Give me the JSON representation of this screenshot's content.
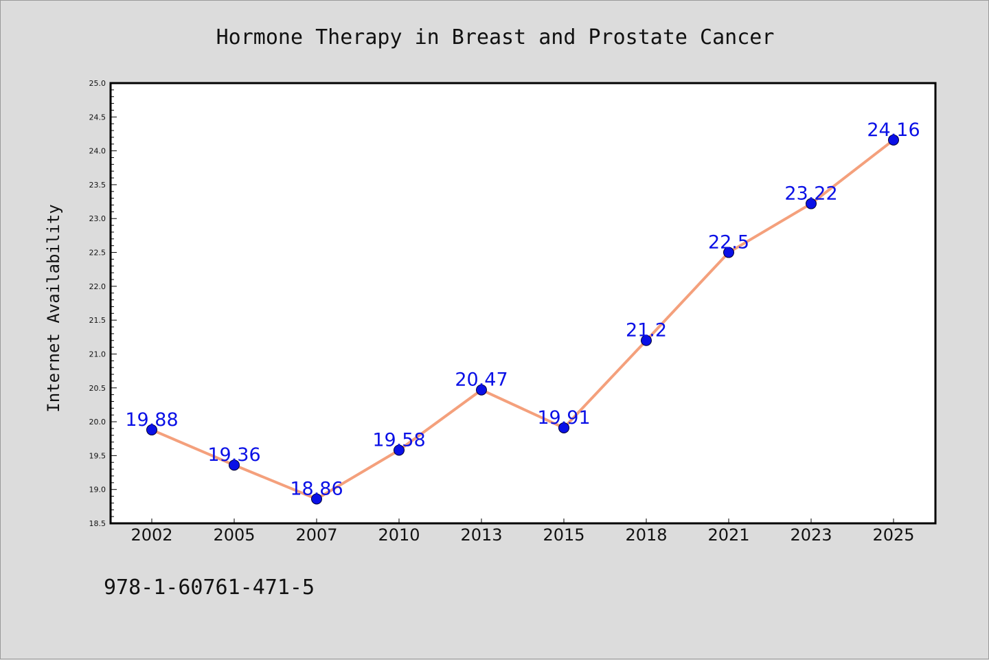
{
  "chart_data": {
    "type": "line",
    "title": "Hormone Therapy in Breast and Prostate Cancer",
    "xlabel": "",
    "ylabel": "Internet Availability",
    "categories": [
      "2002",
      "2005",
      "2007",
      "2010",
      "2013",
      "2015",
      "2018",
      "2021",
      "2023",
      "2025"
    ],
    "series": [
      {
        "values": [
          19.88,
          19.36,
          18.86,
          19.58,
          20.47,
          19.91,
          21.2,
          22.5,
          23.22,
          24.16
        ],
        "data_labels": [
          "19.88",
          "19.36",
          "18.86",
          "19.58",
          "20.47",
          "19.91",
          "21.2",
          "22.5",
          "23.22",
          "24.16"
        ],
        "line_color": "#f4a07c",
        "marker_color": "#0a10e6",
        "label_color": "#0a10e6"
      }
    ],
    "ylim": [
      18.5,
      25.0
    ],
    "yticks": [
      "18.5",
      "19.0",
      "19.5",
      "20.0",
      "20.5",
      "21.0",
      "21.5",
      "22.0",
      "22.5",
      "23.0",
      "23.5",
      "24.0",
      "24.5",
      "25.0"
    ],
    "grid": false,
    "legend": "none"
  },
  "footer": {
    "isbn": "978-1-60761-471-5"
  },
  "colors": {
    "background": "#dcdcdc",
    "plot_area": "#ffffff",
    "axis": "#000000"
  }
}
